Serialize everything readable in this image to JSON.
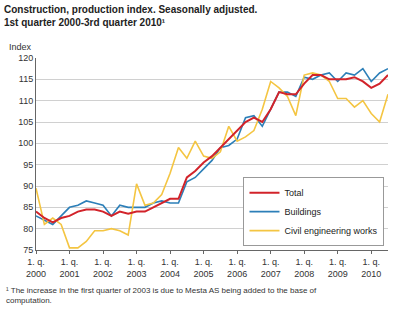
{
  "chart_data": {
    "type": "line",
    "title": [
      "Construction, production index. Seasonally adjusted.",
      "1st quarter 2000-3rd quarter 2010¹"
    ],
    "y_label": "Index",
    "footnote": [
      "¹ The increase in the first quarter of 2003 is due to Mesta AS being added to the base of",
      "computation."
    ],
    "categories": [
      "1. q. 2000",
      null,
      null,
      null,
      "1. q. 2001",
      null,
      null,
      null,
      "1. q. 2002",
      null,
      null,
      null,
      "1. q. 2003",
      null,
      null,
      null,
      "1. q. 2004",
      null,
      null,
      null,
      "1. q. 2005",
      null,
      null,
      null,
      "1. q. 2006",
      null,
      null,
      null,
      "1. q. 2007",
      null,
      null,
      null,
      "1. q. 2008",
      null,
      null,
      null,
      "1. q. 2009",
      null,
      null,
      null,
      "1. q. 2010",
      null,
      null
    ],
    "series": [
      {
        "name": "Total",
        "color": "#d2232a",
        "values": [
          84,
          82.5,
          81.5,
          82.5,
          83,
          84,
          84.5,
          84.5,
          84,
          83,
          84,
          83.5,
          84,
          84,
          85,
          86,
          87,
          87,
          92,
          93.5,
          95.5,
          97,
          99,
          101,
          103,
          105,
          106,
          105,
          108,
          112,
          111.5,
          111.5,
          114,
          116,
          116,
          115,
          115,
          115,
          115.5,
          114.5,
          113,
          114,
          116
        ]
      },
      {
        "name": "Buildings",
        "color": "#2c7fb8",
        "values": [
          83,
          82,
          81,
          83,
          85,
          85.5,
          86.5,
          86,
          85.5,
          83,
          85.5,
          85,
          85,
          85,
          86,
          86.5,
          86,
          86,
          91,
          92,
          94,
          96,
          99,
          99.5,
          101,
          106,
          106.5,
          104,
          108,
          112,
          112,
          111,
          115.5,
          115,
          116,
          116.5,
          114.5,
          116.5,
          116,
          117.5,
          114.5,
          116.5,
          117.5
        ]
      },
      {
        "name": "Civil engineering works",
        "color": "#f4c542",
        "values": [
          89.5,
          81,
          82.5,
          81,
          75.5,
          75.5,
          77,
          79.5,
          79.5,
          80,
          79.5,
          78.5,
          90.5,
          85.5,
          86,
          88,
          93,
          99,
          96.5,
          100.5,
          97,
          96.5,
          98,
          104,
          100.5,
          101.5,
          103,
          108,
          114.5,
          113,
          111,
          106.5,
          116,
          116.5,
          116,
          114.5,
          110.5,
          110.5,
          108.5,
          110,
          107,
          105,
          111.5
        ]
      }
    ],
    "ylim": [
      75,
      120
    ],
    "yticks": [
      75,
      80,
      85,
      90,
      95,
      100,
      105,
      110,
      115,
      120
    ],
    "grid": true,
    "legend": "bottom right"
  }
}
